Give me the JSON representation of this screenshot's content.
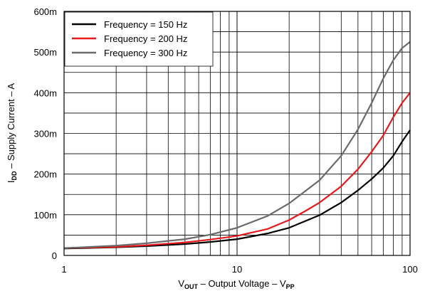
{
  "chart_data": {
    "type": "line",
    "title": "",
    "xlabel": {
      "main": "V",
      "sub": "OUT",
      "rest": " – Output Voltage – V",
      "sub2": "PP"
    },
    "ylabel": {
      "main": "I",
      "sub": "DD",
      "rest": " – Supply Current – A"
    },
    "x_scale": "log",
    "xlim": [
      1,
      100
    ],
    "ylim": [
      0,
      0.6
    ],
    "x_ticks": [
      {
        "value": 1,
        "label": "1"
      },
      {
        "value": 10,
        "label": "10"
      },
      {
        "value": 100,
        "label": "100"
      }
    ],
    "y_ticks": [
      {
        "value": 0,
        "label": "0"
      },
      {
        "value": 0.1,
        "label": "100m"
      },
      {
        "value": 0.2,
        "label": "200m"
      },
      {
        "value": 0.3,
        "label": "300m"
      },
      {
        "value": 0.4,
        "label": "400m"
      },
      {
        "value": 0.5,
        "label": "500m"
      },
      {
        "value": 0.6,
        "label": "600m"
      }
    ],
    "grid": true,
    "legend_position": "top-left",
    "series": [
      {
        "name": "Frequency = 150 Hz",
        "color": "#000000",
        "x": [
          1,
          2,
          3,
          5,
          7,
          10,
          15,
          20,
          30,
          40,
          50,
          60,
          70,
          80,
          90,
          100
        ],
        "y": [
          0.017,
          0.02,
          0.023,
          0.028,
          0.033,
          0.04,
          0.054,
          0.068,
          0.099,
          0.13,
          0.16,
          0.188,
          0.215,
          0.245,
          0.28,
          0.308
        ]
      },
      {
        "name": "Frequency = 200 Hz",
        "color": "#e8191d",
        "x": [
          1,
          2,
          3,
          5,
          7,
          10,
          15,
          20,
          25,
          30,
          40,
          50,
          60,
          70,
          80,
          90,
          100
        ],
        "y": [
          0.018,
          0.021,
          0.025,
          0.032,
          0.039,
          0.048,
          0.065,
          0.087,
          0.11,
          0.13,
          0.17,
          0.212,
          0.255,
          0.295,
          0.34,
          0.375,
          0.4
        ]
      },
      {
        "name": "Frequency = 300 Hz",
        "color": "#6a6a6a",
        "x": [
          1,
          2,
          3,
          5,
          7,
          10,
          15,
          20,
          30,
          40,
          50,
          60,
          70,
          80,
          90,
          100
        ],
        "y": [
          0.018,
          0.024,
          0.03,
          0.04,
          0.051,
          0.068,
          0.097,
          0.128,
          0.185,
          0.245,
          0.31,
          0.375,
          0.435,
          0.48,
          0.51,
          0.525
        ]
      }
    ]
  }
}
